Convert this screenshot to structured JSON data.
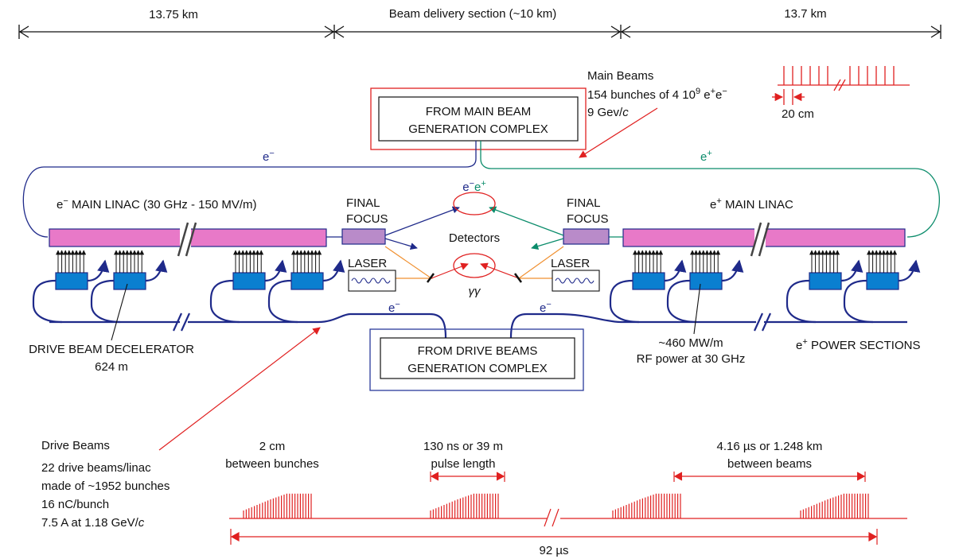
{
  "colors": {
    "electron_line": "#1f2a8a",
    "positron_line": "#0b8c6b",
    "linac_fill": "#e879c8",
    "decelerator_fill": "#0a7fd0",
    "final_focus_fill": "#b98bc9",
    "annotation_red": "#e02020",
    "laser_orange": "#f09030",
    "text": "#111111"
  },
  "dimensions": {
    "left_span": "13.75 km",
    "center_span": "Beam delivery section (~10 km)",
    "right_span": "13.7 km"
  },
  "main_beams": {
    "title": "Main Beams",
    "line2_prefix": "154 bunches of 4 10",
    "line2_exp": "9",
    "line2_suffix": " e",
    "line2_sup1": "+",
    "line2_mid": "e",
    "line2_sup2": "−",
    "line3": "9 Gev/",
    "line3_italic": "c",
    "spacing": "20 cm"
  },
  "main_gen": {
    "line1": "FROM MAIN BEAM",
    "line2": "GENERATION COMPLEX"
  },
  "beam_labels": {
    "electron": "e",
    "electron_sup": "−",
    "positron": "e",
    "positron_sup": "+"
  },
  "left_linac": {
    "prefix": "e",
    "sup": "−",
    "label": " MAIN LINAC (30 GHz - 150 MV/m)"
  },
  "right_linac": {
    "prefix": "e",
    "sup": "+",
    "label": " MAIN LINAC"
  },
  "final_focus": {
    "line1": "FINAL",
    "line2": "FOCUS"
  },
  "detectors": {
    "label": "Detectors",
    "ee_e1": "e",
    "ee_s1": "−",
    "ee_e2": "e",
    "ee_s2": "+",
    "gamma": "γγ"
  },
  "laser": {
    "label": "LASER"
  },
  "drive_gen": {
    "line1": "FROM DRIVE BEAMS",
    "line2": "GENERATION COMPLEX"
  },
  "decelerator": {
    "line1": "DRIVE BEAM DECELERATOR",
    "line2": "624 m"
  },
  "rf_power": {
    "line1": "~460 MW/m",
    "line2": "RF power at 30 GHz"
  },
  "power_sections": {
    "prefix": "e",
    "sup": "+",
    "label": " POWER SECTIONS"
  },
  "drive_beams": {
    "title": "Drive Beams",
    "lines": [
      "22 drive beams/linac",
      "made of ~1952 bunches",
      "16 nC/bunch"
    ],
    "last_line": "7.5 A at 1.18 GeV/",
    "last_line_italic": "c"
  },
  "timing": {
    "bunch_spacing_1": "2 cm",
    "bunch_spacing_2": "between bunches",
    "pulse_1": "130 ns or 39 m",
    "pulse_2": "pulse length",
    "between_1": "4.16 µs or 1.248 km",
    "between_2": "between beams",
    "total": "92 µs"
  }
}
